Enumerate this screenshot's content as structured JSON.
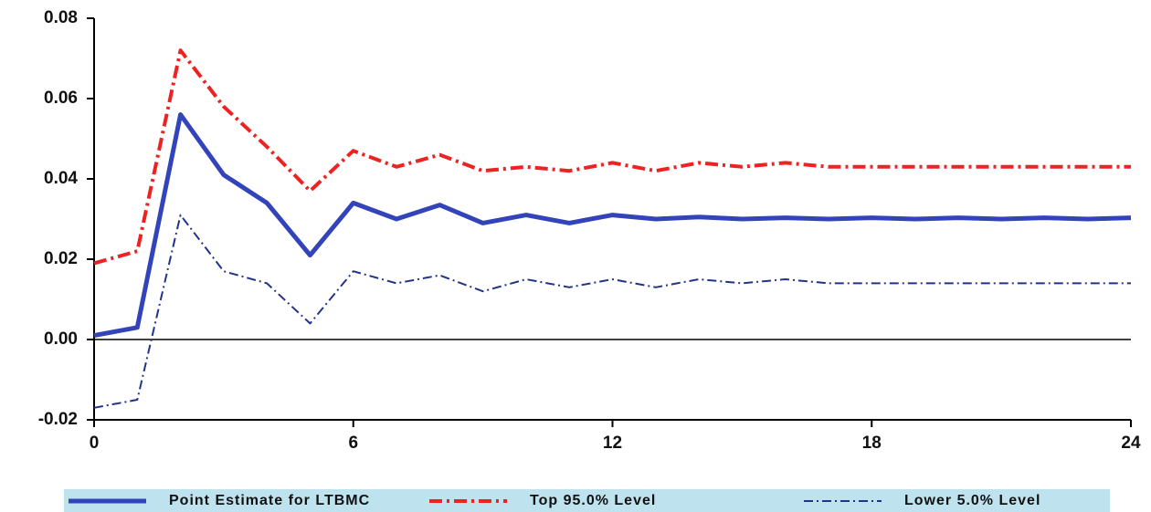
{
  "chart_data": {
    "type": "line",
    "x": [
      0,
      1,
      2,
      3,
      4,
      5,
      6,
      7,
      8,
      9,
      10,
      11,
      12,
      13,
      14,
      15,
      16,
      17,
      18,
      19,
      20,
      21,
      22,
      23,
      24
    ],
    "series": [
      {
        "name": "Point Estimate for LTBMC",
        "color": "#3344bb",
        "values": [
          0.001,
          0.003,
          0.056,
          0.041,
          0.034,
          0.021,
          0.034,
          0.03,
          0.0335,
          0.029,
          0.031,
          0.029,
          0.031,
          0.03,
          0.0305,
          0.03,
          0.0303,
          0.03,
          0.0303,
          0.03,
          0.0303,
          0.03,
          0.0303,
          0.03,
          0.0303
        ]
      },
      {
        "name": "Top 95.0% Level",
        "color": "#ee2222",
        "values": [
          0.019,
          0.022,
          0.072,
          0.058,
          0.048,
          0.037,
          0.047,
          0.043,
          0.046,
          0.042,
          0.043,
          0.042,
          0.044,
          0.042,
          0.044,
          0.043,
          0.044,
          0.043,
          0.043,
          0.043,
          0.043,
          0.043,
          0.043,
          0.043,
          0.043
        ]
      },
      {
        "name": "Lower 5.0% Level",
        "color": "#223388",
        "values": [
          -0.017,
          -0.015,
          0.031,
          0.017,
          0.014,
          0.004,
          0.017,
          0.014,
          0.016,
          0.012,
          0.015,
          0.013,
          0.015,
          0.013,
          0.015,
          0.014,
          0.015,
          0.014,
          0.014,
          0.014,
          0.014,
          0.014,
          0.014,
          0.014,
          0.014
        ]
      }
    ],
    "xlim": [
      0,
      24
    ],
    "xticks": [
      0,
      6,
      12,
      18,
      24
    ],
    "ylim": [
      -0.02,
      0.08
    ],
    "yticks": [
      -0.02,
      {
        "value": 0,
        "label": "0.00"
      },
      0.02,
      0.04,
      0.06,
      0.08
    ],
    "legend": "bottom"
  }
}
